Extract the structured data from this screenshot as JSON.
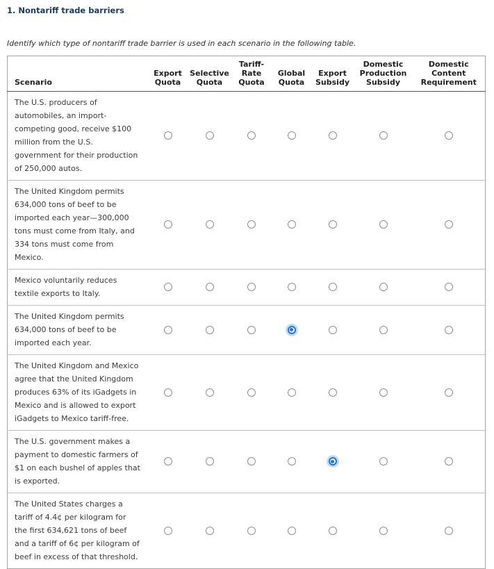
{
  "page": {
    "title": "1. Nontariff trade barriers",
    "instruction": "Identify which type of nontariff trade barrier is used in each scenario in the following table."
  },
  "table": {
    "scenario_header": "Scenario",
    "columns": [
      "Export Quota",
      "Selective Quota",
      "Tariff-Rate Quota",
      "Global Quota",
      "Export Subsidy",
      "Domestic Production Subsidy",
      "Domestic Content Requirement"
    ],
    "rows": [
      {
        "scenario": "The U.S. producers of automobiles, an import-competing good, receive $100 million from the U.S. government for their production of 250,000 autos.",
        "selected": null
      },
      {
        "scenario": "The United Kingdom permits 634,000 tons of beef to be imported each year—300,000 tons must come from Italy, and 334 tons must come from Mexico.",
        "selected": null
      },
      {
        "scenario": "Mexico voluntarily reduces textile exports to Italy.",
        "selected": null
      },
      {
        "scenario": "The United Kingdom permits 634,000 tons of beef to be imported each year.",
        "selected": "Global Quota"
      },
      {
        "scenario": "The United Kingdom and Mexico agree that the United Kingdom produces 63% of its iGadgets in Mexico and is allowed to export iGadgets to Mexico tariff-free.",
        "selected": null
      },
      {
        "scenario": "The U.S. government makes a payment to domestic farmers of $1 on each bushel of apples that is exported.",
        "selected": "Export Subsidy"
      },
      {
        "scenario": "The United States charges a tariff of 4.4¢ per kilogram for the first 634,621 tons of beef and a tariff of 6¢ per kilogram of beef in excess of that threshold.",
        "selected": null
      }
    ]
  },
  "colors": {
    "title_text": "#1a3a5c",
    "body_text": "#3a3a3a",
    "radio_selected": "#1a73e8",
    "radio_halo": "#c3dcf8"
  }
}
